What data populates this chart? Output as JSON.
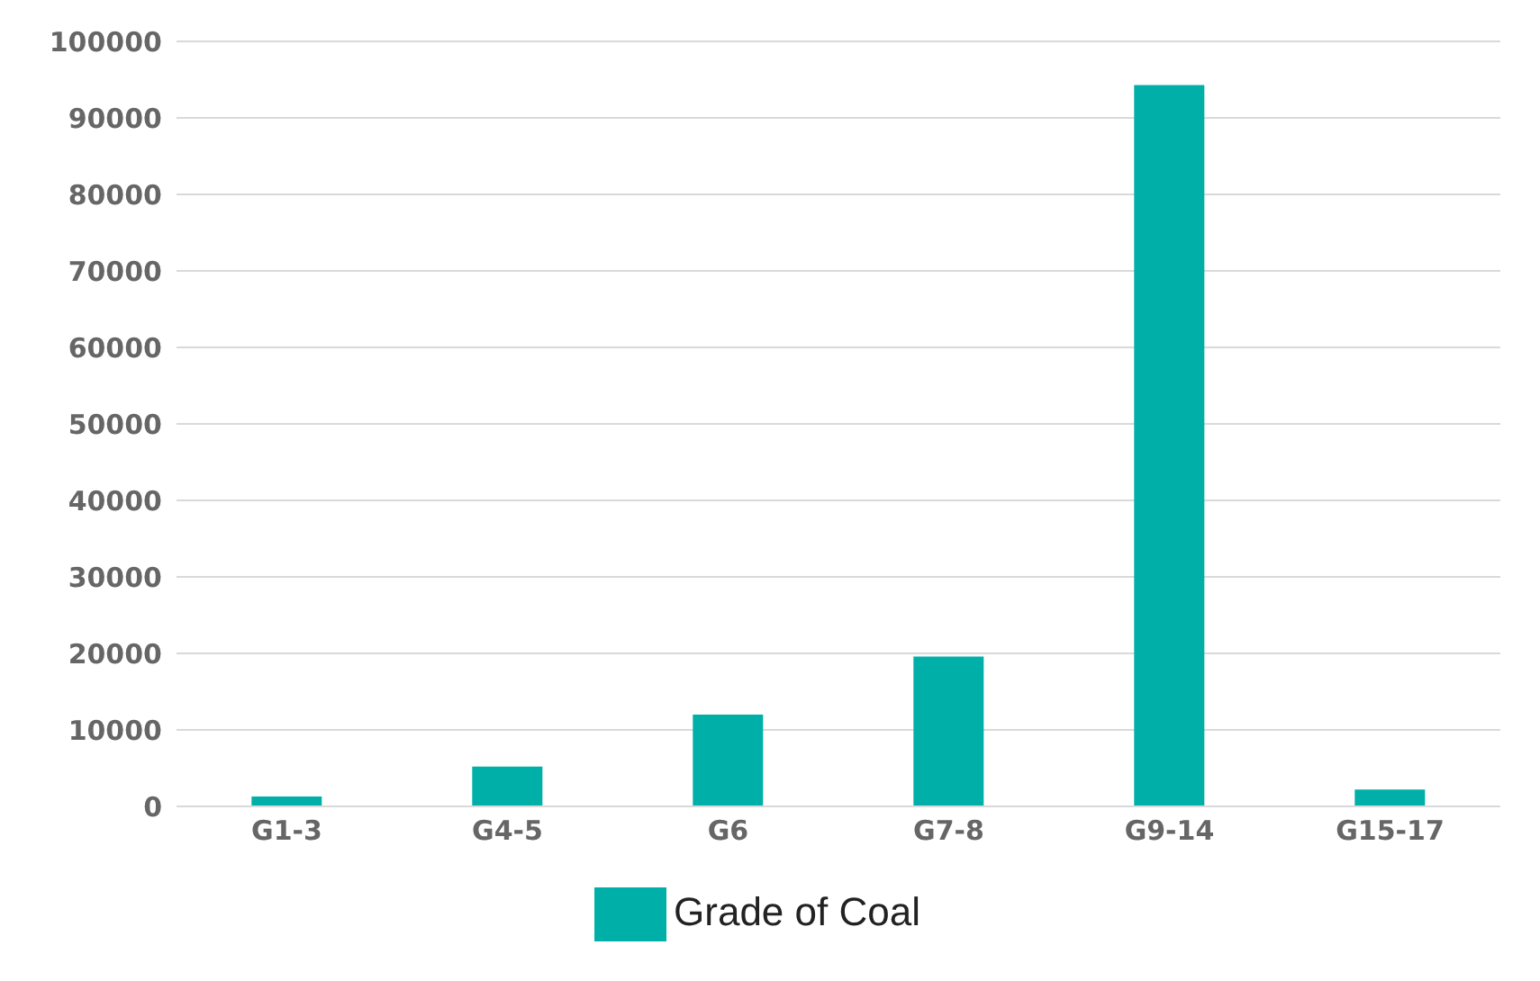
{
  "chart_data": {
    "type": "bar",
    "categories": [
      "G1-3",
      "G4-5",
      "G6",
      "G7-8",
      "G9-14",
      "G15-17"
    ],
    "series": [
      {
        "name": "Grade of Coal",
        "color": "#00b0a8",
        "values": [
          1300,
          5200,
          12000,
          19600,
          94300,
          2200
        ]
      }
    ],
    "ylim": [
      0,
      100000
    ],
    "yticks": [
      0,
      10000,
      20000,
      30000,
      40000,
      50000,
      60000,
      70000,
      80000,
      90000,
      100000
    ],
    "grid": "y",
    "legend": "bottom"
  }
}
